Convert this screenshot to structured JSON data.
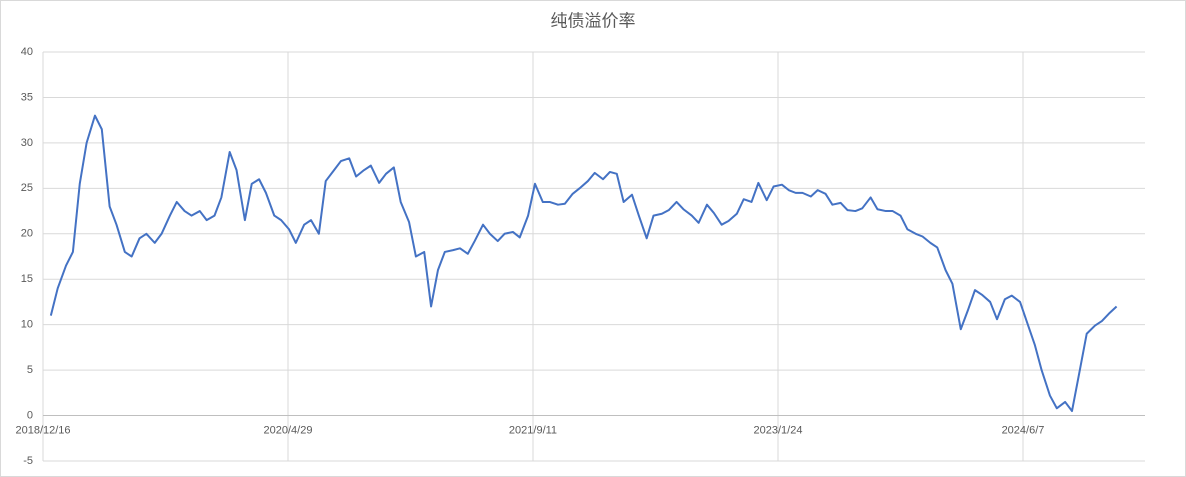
{
  "chart_data": {
    "type": "line",
    "title": "纯债溢价率",
    "x": [
      "2019/1/1",
      "2019/1/15",
      "2019/2/1",
      "2019/2/15",
      "2019/3/1",
      "2019/3/15",
      "2019/4/1",
      "2019/4/15",
      "2019/5/1",
      "2019/5/15",
      "2019/6/1",
      "2019/6/15",
      "2019/7/1",
      "2019/7/15",
      "2019/8/1",
      "2019/8/15",
      "2019/9/1",
      "2019/9/15",
      "2019/10/1",
      "2019/10/15",
      "2019/11/1",
      "2019/11/15",
      "2019/12/1",
      "2019/12/15",
      "2020/1/1",
      "2020/1/15",
      "2020/2/1",
      "2020/2/15",
      "2020/3/1",
      "2020/3/15",
      "2020/4/1",
      "2020/4/15",
      "2020/5/1",
      "2020/5/15",
      "2020/6/1",
      "2020/6/15",
      "2020/7/1",
      "2020/7/15",
      "2020/8/1",
      "2020/8/15",
      "2020/9/1",
      "2020/9/15",
      "2020/10/1",
      "2020/10/15",
      "2020/11/1",
      "2020/11/15",
      "2020/12/1",
      "2020/12/15",
      "2021/1/1",
      "2021/1/15",
      "2021/2/1",
      "2021/2/15",
      "2021/3/1",
      "2021/3/15",
      "2021/4/1",
      "2021/4/15",
      "2021/5/1",
      "2021/5/15",
      "2021/6/1",
      "2021/6/15",
      "2021/7/1",
      "2021/7/15",
      "2021/8/1",
      "2021/8/15",
      "2021/9/1",
      "2021/9/15",
      "2021/10/1",
      "2021/10/15",
      "2021/11/1",
      "2021/11/15",
      "2021/12/1",
      "2021/12/15",
      "2022/1/1",
      "2022/1/15",
      "2022/2/1",
      "2022/2/15",
      "2022/3/1",
      "2022/3/15",
      "2022/4/1",
      "2022/4/15",
      "2022/5/1",
      "2022/5/15",
      "2022/6/1",
      "2022/6/15",
      "2022/7/1",
      "2022/7/15",
      "2022/8/1",
      "2022/8/15",
      "2022/9/1",
      "2022/9/15",
      "2022/10/1",
      "2022/10/15",
      "2022/11/1",
      "2022/11/15",
      "2022/12/1",
      "2022/12/15",
      "2023/1/1",
      "2023/1/15",
      "2023/2/1",
      "2023/2/15",
      "2023/3/1",
      "2023/3/15",
      "2023/4/1",
      "2023/4/15",
      "2023/5/1",
      "2023/5/15",
      "2023/6/1",
      "2023/6/15",
      "2023/7/1",
      "2023/7/15",
      "2023/8/1",
      "2023/8/15",
      "2023/9/1",
      "2023/9/15",
      "2023/10/1",
      "2023/10/15",
      "2023/11/1",
      "2023/11/15",
      "2023/12/1",
      "2023/12/15",
      "2024/1/1",
      "2024/1/15",
      "2024/2/1",
      "2024/2/15",
      "2024/3/1",
      "2024/3/15",
      "2024/4/1",
      "2024/4/15",
      "2024/5/1",
      "2024/5/15",
      "2024/6/1",
      "2024/6/15",
      "2024/7/1",
      "2024/7/15",
      "2024/8/1",
      "2024/8/15",
      "2024/9/1",
      "2024/9/15",
      "2024/10/1",
      "2024/10/15",
      "2024/11/1",
      "2024/11/15",
      "2024/12/1",
      "2024/12/15"
    ],
    "series": [
      {
        "color": "#4472c4",
        "values": [
          11,
          14,
          16.5,
          18,
          25.5,
          30,
          33,
          31.5,
          23,
          21,
          18,
          17.5,
          19.5,
          20,
          19,
          20,
          22,
          23.5,
          22.5,
          22,
          22.5,
          21.5,
          22,
          24,
          29,
          27,
          21.5,
          25.5,
          26,
          24.5,
          22,
          21.5,
          20.5,
          19,
          21,
          21.5,
          20,
          25.8,
          27,
          28,
          28.3,
          26.3,
          27,
          27.5,
          25.6,
          26.6,
          27.3,
          23.5,
          21.3,
          17.5,
          18,
          12,
          16,
          18,
          18.2,
          18.4,
          17.8,
          19.2,
          21,
          20,
          19.2,
          20,
          20.2,
          19.6,
          22,
          25.5,
          23.5,
          23.5,
          23.2,
          23.3,
          24.4,
          25,
          25.8,
          26.7,
          26,
          26.8,
          26.6,
          23.5,
          24.3,
          22,
          19.5,
          22,
          22.2,
          22.6,
          23.5,
          22.7,
          22,
          21.2,
          23.2,
          22.3,
          21,
          21.4,
          22.2,
          23.8,
          23.5,
          25.6,
          23.7,
          25.2,
          25.4,
          24.8,
          24.5,
          24.5,
          24.1,
          24.8,
          24.4,
          23.2,
          23.4,
          22.6,
          22.5,
          22.8,
          24,
          22.7,
          22.5,
          22.5,
          22,
          20.5,
          20,
          19.7,
          19,
          18.5,
          16,
          14.5,
          9.5,
          11.5,
          13.8,
          13.3,
          12.5,
          10.6,
          12.8,
          13.2,
          12.5,
          10.3,
          7.8,
          5,
          2.2,
          0.8,
          1.5,
          0.5,
          5,
          9,
          9.9,
          10.4,
          11.3,
          12
        ]
      }
    ],
    "xlim": [
      "2018/12/16",
      "2025/2/11"
    ],
    "xticks": [
      "2018/12/16",
      "2020/4/29",
      "2021/9/11",
      "2023/1/24",
      "2024/6/7"
    ],
    "ylim": [
      -5,
      40
    ],
    "yticks": [
      -5,
      0,
      5,
      10,
      15,
      20,
      25,
      30,
      35,
      40
    ],
    "grid": true
  }
}
